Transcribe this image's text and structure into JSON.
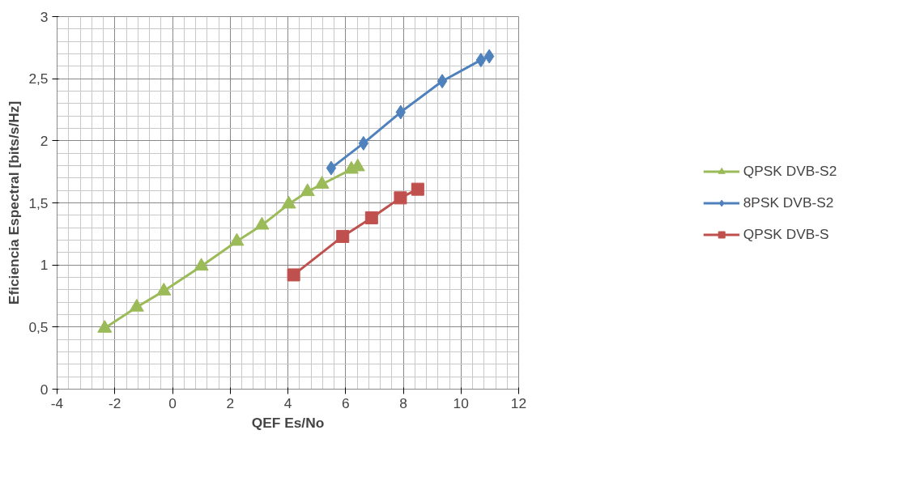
{
  "chart_data": {
    "type": "line",
    "xlabel": "QEF Es/No",
    "ylabel": "Eficiencia Espectral [bits/s/Hz]",
    "series": [
      {
        "name": "QPSK DVB-S2",
        "color": "#9bbb59",
        "marker": "triangle",
        "x": [
          -2.35,
          -1.24,
          -0.3,
          1.0,
          2.23,
          3.1,
          4.03,
          4.68,
          5.18,
          6.2,
          6.42
        ],
        "values": [
          0.49,
          0.66,
          0.79,
          0.99,
          1.19,
          1.32,
          1.49,
          1.59,
          1.65,
          1.77,
          1.79
        ]
      },
      {
        "name": "8PSK DVB-S2",
        "color": "#4f81bd",
        "marker": "diamond",
        "x": [
          5.5,
          6.62,
          7.91,
          9.35,
          10.69,
          10.98
        ],
        "values": [
          1.78,
          1.98,
          2.23,
          2.48,
          2.65,
          2.68
        ]
      },
      {
        "name": "QPSK DVB-S",
        "color": "#c0504d",
        "marker": "square",
        "x": [
          4.2,
          5.9,
          6.9,
          7.9,
          8.5
        ],
        "values": [
          0.92,
          1.23,
          1.38,
          1.54,
          1.61
        ]
      }
    ],
    "xlim": [
      -4,
      12
    ],
    "xticks": [
      -4,
      -2,
      0,
      2,
      4,
      6,
      8,
      10,
      12
    ],
    "ylim": [
      0,
      3
    ],
    "yticks": [
      0,
      {
        "value": 0.5,
        "label": "0,5"
      },
      1,
      {
        "value": 1.5,
        "label": "1,5"
      },
      2,
      {
        "value": 2.5,
        "label": "2,5"
      },
      3
    ],
    "grid": true,
    "legend": "right",
    "line_style": "solid"
  }
}
